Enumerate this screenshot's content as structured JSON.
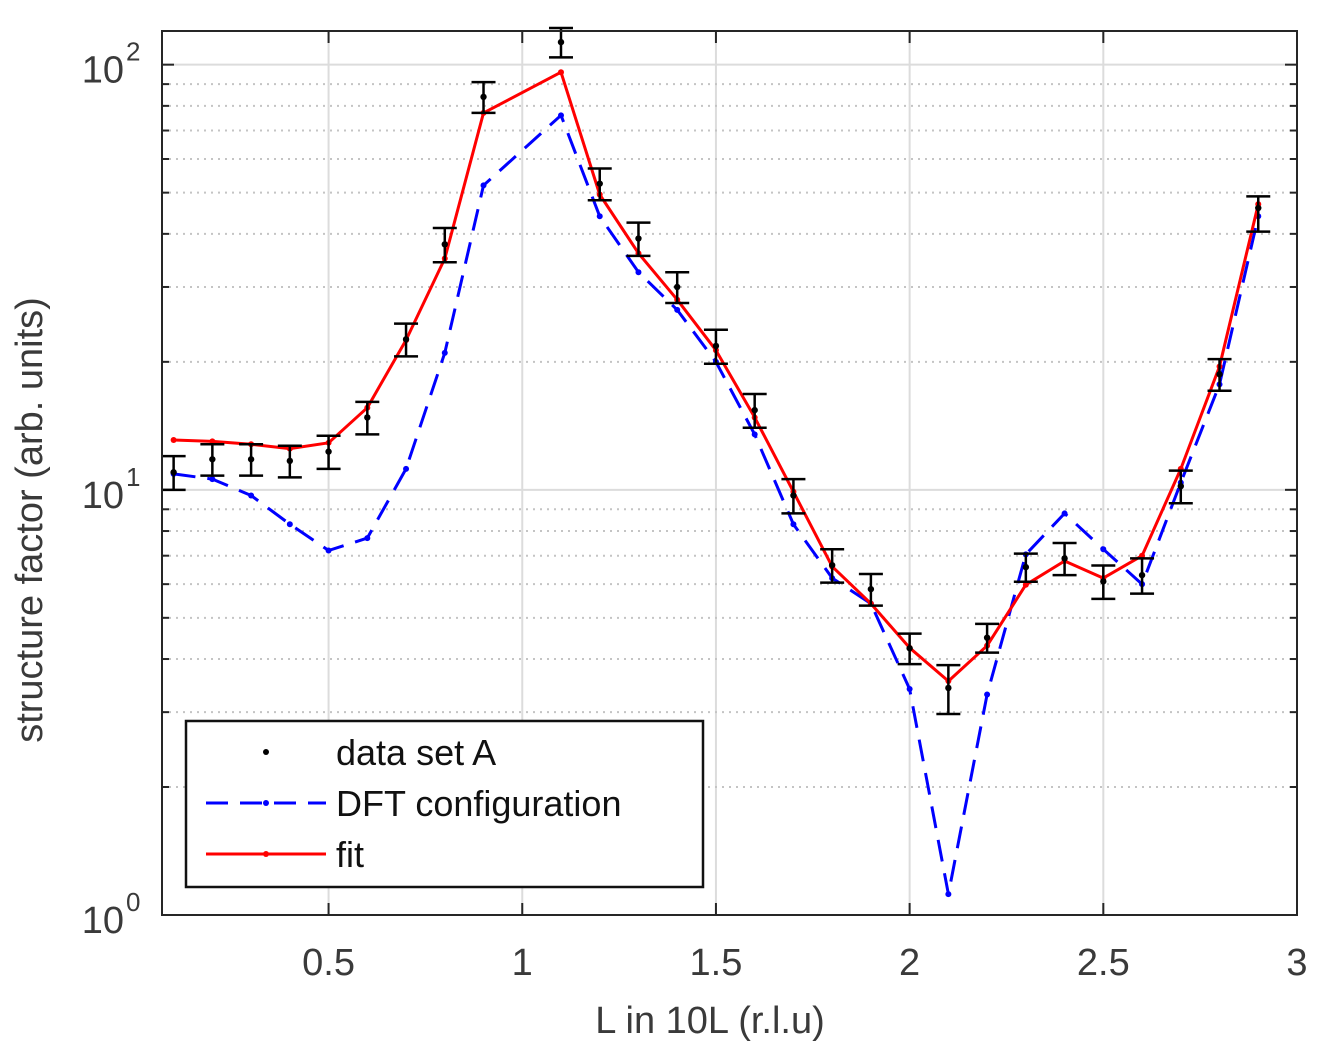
{
  "chart_data": {
    "type": "line",
    "xlabel": "L in 10L (r.l.u)",
    "ylabel": "structure factor (arb. units)",
    "xlim": [
      0.07,
      3.0
    ],
    "ylim": [
      1,
      120
    ],
    "yscale": "log",
    "grid": true,
    "legend_position": "bottom-left",
    "x_ticks": [
      {
        "value": 0.5,
        "label": "0.5"
      },
      {
        "value": 1,
        "label": "1"
      },
      {
        "value": 1.5,
        "label": "1.5"
      },
      {
        "value": 2,
        "label": "2"
      },
      {
        "value": 2.5,
        "label": "2.5"
      },
      {
        "value": 3,
        "label": "3"
      }
    ],
    "y_ticks": [
      {
        "value": 1,
        "base": "10",
        "exp": "0"
      },
      {
        "value": 10,
        "base": "10",
        "exp": "1"
      },
      {
        "value": 100,
        "base": "10",
        "exp": "2"
      }
    ],
    "series": [
      {
        "name": "data set A",
        "style": "points-errorbars",
        "color": "#000000",
        "x": [
          0.1,
          0.2,
          0.3,
          0.4,
          0.5,
          0.6,
          0.7,
          0.8,
          0.9,
          1.1,
          1.2,
          1.3,
          1.4,
          1.5,
          1.6,
          1.7,
          1.8,
          1.9,
          2.0,
          2.1,
          2.2,
          2.3,
          2.4,
          2.5,
          2.6,
          2.7,
          2.8,
          2.9
        ],
        "values": [
          11.0,
          11.8,
          11.8,
          11.7,
          12.3,
          14.8,
          22.6,
          37.8,
          84,
          113,
          52.5,
          39,
          30,
          21.8,
          15.4,
          9.7,
          6.65,
          5.84,
          4.24,
          3.42,
          4.49,
          6.58,
          6.9,
          6.09,
          6.3,
          10.2,
          18.7,
          46
        ],
        "err_low": [
          1.0,
          1.0,
          1.0,
          1.0,
          1.1,
          1.3,
          2.0,
          3.5,
          7,
          9,
          4.5,
          3.5,
          2.5,
          2.0,
          1.4,
          0.9,
          0.6,
          0.5,
          0.35,
          0.45,
          0.35,
          0.5,
          0.6,
          0.55,
          0.6,
          0.9,
          1.6,
          5.5
        ],
        "err_high": [
          1.0,
          1.0,
          1.0,
          1.0,
          1.1,
          1.3,
          2.0,
          3.5,
          7,
          9,
          4.5,
          3.5,
          2.5,
          2.0,
          1.4,
          0.9,
          0.6,
          0.5,
          0.35,
          0.45,
          0.35,
          0.5,
          0.6,
          0.55,
          0.6,
          0.9,
          1.6,
          3.0
        ]
      },
      {
        "name": "DFT configuration",
        "style": "dashed-dots",
        "color": "#0000ff",
        "x": [
          0.1,
          0.2,
          0.3,
          0.4,
          0.5,
          0.6,
          0.7,
          0.8,
          0.9,
          1.1,
          1.2,
          1.3,
          1.4,
          1.5,
          1.6,
          1.7,
          1.8,
          1.9,
          2.0,
          2.1,
          2.2,
          2.3,
          2.4,
          2.5,
          2.6,
          2.7,
          2.8,
          2.9
        ],
        "values": [
          10.9,
          10.6,
          9.7,
          8.3,
          7.2,
          7.7,
          11.2,
          21,
          52,
          76,
          44,
          32.5,
          26.5,
          20,
          13.5,
          8.3,
          6.2,
          5.4,
          3.4,
          1.12,
          3.3,
          7.05,
          8.8,
          7.25,
          6.0,
          10.4,
          17.7,
          44
        ]
      },
      {
        "name": "fit",
        "style": "solid-dots",
        "color": "#ff0000",
        "x": [
          0.1,
          0.2,
          0.3,
          0.4,
          0.5,
          0.6,
          0.7,
          0.8,
          0.9,
          1.1,
          1.2,
          1.3,
          1.4,
          1.5,
          1.6,
          1.7,
          1.8,
          1.9,
          2.0,
          2.1,
          2.2,
          2.3,
          2.4,
          2.5,
          2.6,
          2.7,
          2.8,
          2.9
        ],
        "values": [
          13.1,
          13.0,
          12.8,
          12.5,
          12.9,
          15.6,
          22.5,
          35,
          77,
          96,
          49.5,
          36,
          28,
          21.3,
          14.8,
          9.9,
          6.6,
          5.4,
          4.25,
          3.55,
          4.3,
          5.98,
          6.8,
          6.2,
          7.0,
          11.2,
          19.5,
          47
        ]
      }
    ]
  }
}
